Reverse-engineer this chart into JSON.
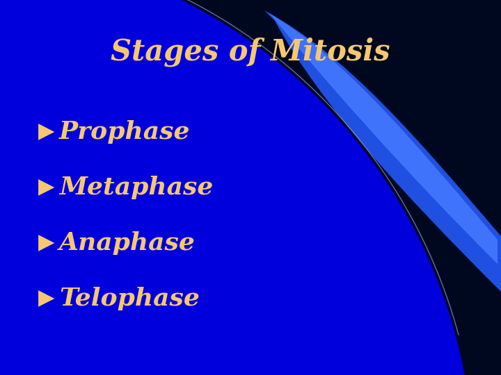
{
  "title": "Stages of Mitosis",
  "title_color": "#F5C870",
  "title_fontsize": 30,
  "items": [
    "Prophase",
    "Metaphase",
    "Anaphase",
    "Telophase"
  ],
  "item_color": "#F5C870",
  "item_fontsize": 26,
  "bg_dark": "#000820",
  "bg_blue": "#0000DD",
  "swoosh_color": "#2255EE",
  "swoosh_bright": "#3366FF"
}
